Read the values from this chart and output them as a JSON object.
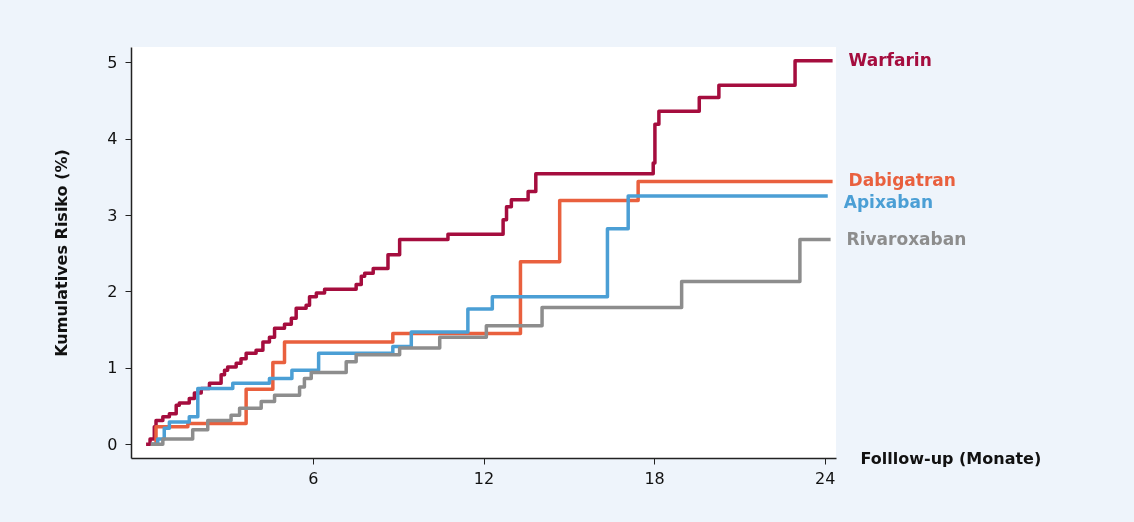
{
  "chart_data": {
    "type": "step",
    "xlabel": "Folllow-up (Monate)",
    "ylabel": "Kumulatives Risiko (%)",
    "xlim": [
      -0.4,
      24.4
    ],
    "ylim": [
      -0.18,
      5.2
    ],
    "xticks": [
      6,
      12,
      18,
      24
    ],
    "yticks": [
      0,
      1,
      2,
      3,
      4,
      5
    ],
    "grid": false,
    "legend": false,
    "line_style": "solid",
    "marker": "none",
    "series": [
      {
        "name": "Warfarin",
        "color": "#a50d3e",
        "x": [
          0.13,
          0.27,
          0.42,
          0.48,
          0.72,
          0.95,
          1.19,
          1.3,
          1.65,
          1.83,
          2.07,
          2.36,
          2.77,
          2.89,
          3.0,
          3.3,
          3.47,
          3.65,
          4.0,
          4.24,
          4.47,
          4.65,
          5.0,
          5.24,
          5.41,
          5.76,
          5.88,
          6.12,
          6.41,
          7.52,
          7.7,
          7.82,
          8.12,
          8.64,
          9.05,
          10.75,
          12.69,
          12.81,
          12.98,
          13.57,
          13.84,
          17.97,
          18.03,
          18.17,
          19.59,
          20.28,
          22.96,
          24.28
        ],
        "values": [
          0,
          0.07,
          0.23,
          0.31,
          0.36,
          0.4,
          0.51,
          0.54,
          0.6,
          0.67,
          0.73,
          0.8,
          0.91,
          0.97,
          1.01,
          1.06,
          1.12,
          1.19,
          1.23,
          1.34,
          1.4,
          1.52,
          1.57,
          1.65,
          1.78,
          1.82,
          1.93,
          1.98,
          2.03,
          2.09,
          2.2,
          2.24,
          2.3,
          2.48,
          2.68,
          2.75,
          2.94,
          3.11,
          3.2,
          3.31,
          3.54,
          3.68,
          4.19,
          4.36,
          4.54,
          4.7,
          5.02,
          5.02
        ]
      },
      {
        "name": "Dabigatran",
        "color": "#e9603e",
        "x": [
          0.3,
          0.48,
          1.6,
          3.65,
          4.59,
          5.0,
          8.81,
          13.3,
          14.68,
          17.44,
          24.28
        ],
        "values": [
          0,
          0.23,
          0.27,
          0.72,
          1.07,
          1.34,
          1.45,
          2.39,
          3.19,
          3.44,
          3.44
        ]
      },
      {
        "name": "Apixaban",
        "color": "#4b9fd5",
        "x": [
          0.3,
          0.54,
          0.77,
          0.95,
          1.65,
          1.95,
          3.18,
          4.47,
          5.26,
          6.2,
          8.81,
          9.46,
          11.45,
          12.31,
          16.36,
          17.09,
          24.11
        ],
        "values": [
          0,
          0.07,
          0.21,
          0.29,
          0.36,
          0.73,
          0.8,
          0.86,
          0.97,
          1.19,
          1.28,
          1.47,
          1.77,
          1.93,
          2.82,
          3.25,
          3.25
        ]
      },
      {
        "name": "Rivaroxaban",
        "color": "#8d8d8d",
        "x": [
          0.3,
          0.72,
          1.77,
          2.3,
          3.12,
          3.42,
          4.18,
          4.65,
          5.53,
          5.7,
          5.94,
          7.17,
          7.52,
          9.05,
          10.46,
          12.1,
          14.06,
          18.97,
          23.13,
          24.21
        ],
        "values": [
          0,
          0.07,
          0.19,
          0.31,
          0.38,
          0.47,
          0.56,
          0.64,
          0.75,
          0.86,
          0.94,
          1.08,
          1.17,
          1.26,
          1.4,
          1.55,
          1.79,
          2.13,
          2.68,
          2.68
        ]
      }
    ]
  }
}
